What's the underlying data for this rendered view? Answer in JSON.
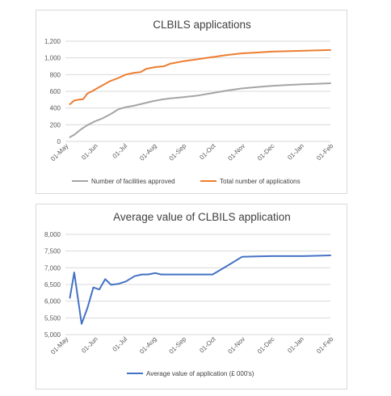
{
  "chart_data": [
    {
      "type": "line",
      "title": "CLBILS applications",
      "categories": [
        "01-May",
        "01-Jun",
        "01-Jul",
        "01-Aug",
        "01-Sep",
        "01-Oct",
        "01-Nov",
        "01-Dec",
        "01-Jan",
        "01-Feb"
      ],
      "ylim": [
        0,
        1200
      ],
      "yticks": [
        "0",
        "200",
        "400",
        "600",
        "800",
        "1,000",
        "1,200"
      ],
      "grid": true,
      "legend": "bottom",
      "series": [
        {
          "name": "Number of facilities approved",
          "color": "#a5a5a5",
          "x": [
            0.15,
            0.3,
            0.55,
            0.75,
            1.0,
            1.25,
            1.55,
            1.8,
            2.05,
            2.35,
            2.65,
            2.95,
            3.25,
            3.55,
            4.0,
            4.5,
            5.0,
            5.5,
            6.0,
            6.5,
            7.0,
            7.5,
            8.0,
            8.5,
            9.0
          ],
          "values": [
            50,
            80,
            150,
            195,
            240,
            275,
            330,
            385,
            410,
            430,
            455,
            480,
            500,
            515,
            530,
            550,
            580,
            610,
            635,
            650,
            665,
            675,
            683,
            690,
            697
          ]
        },
        {
          "name": "Total number of applications",
          "color": "#ed7d31",
          "x": [
            0.15,
            0.3,
            0.45,
            0.6,
            0.75,
            0.9,
            1.2,
            1.5,
            1.8,
            2.05,
            2.3,
            2.55,
            2.75,
            3.05,
            3.35,
            3.55,
            4.0,
            4.5,
            5.0,
            5.5,
            6.0,
            6.5,
            7.0,
            7.5,
            8.0,
            8.5,
            9.0
          ],
          "values": [
            445,
            490,
            500,
            505,
            575,
            600,
            660,
            720,
            760,
            800,
            820,
            830,
            870,
            890,
            900,
            930,
            960,
            985,
            1010,
            1035,
            1055,
            1065,
            1075,
            1080,
            1085,
            1090,
            1095
          ]
        }
      ]
    },
    {
      "type": "line",
      "title": "Average value of CLBILS application",
      "categories": [
        "01-May",
        "01-Jun",
        "01-Jul",
        "01-Aug",
        "01-Sep",
        "01-Oct",
        "01-Nov",
        "01-Dec",
        "01-Jan",
        "01-Feb"
      ],
      "ylim": [
        5000,
        8000
      ],
      "yticks": [
        "5,000",
        "5,500",
        "6,000",
        "6,500",
        "7,000",
        "7,500",
        "8,000"
      ],
      "grid": true,
      "legend": "bottom",
      "series": [
        {
          "name": "Average value of application (£ 000's)",
          "color": "#4472c4",
          "x": [
            0.15,
            0.3,
            0.55,
            0.75,
            0.95,
            1.15,
            1.35,
            1.55,
            1.8,
            2.05,
            2.35,
            2.6,
            2.8,
            3.05,
            3.25,
            3.5,
            3.75,
            4.0,
            4.5,
            5.0,
            5.5,
            6.0,
            6.5,
            7.0,
            7.5,
            8.0,
            8.5,
            9.0
          ],
          "values": [
            6100,
            6860,
            5320,
            5800,
            6410,
            6350,
            6660,
            6490,
            6520,
            6590,
            6750,
            6800,
            6800,
            6840,
            6800,
            6800,
            6800,
            6800,
            6800,
            6800,
            7060,
            7330,
            7340,
            7350,
            7350,
            7350,
            7360,
            7370
          ]
        }
      ]
    }
  ]
}
